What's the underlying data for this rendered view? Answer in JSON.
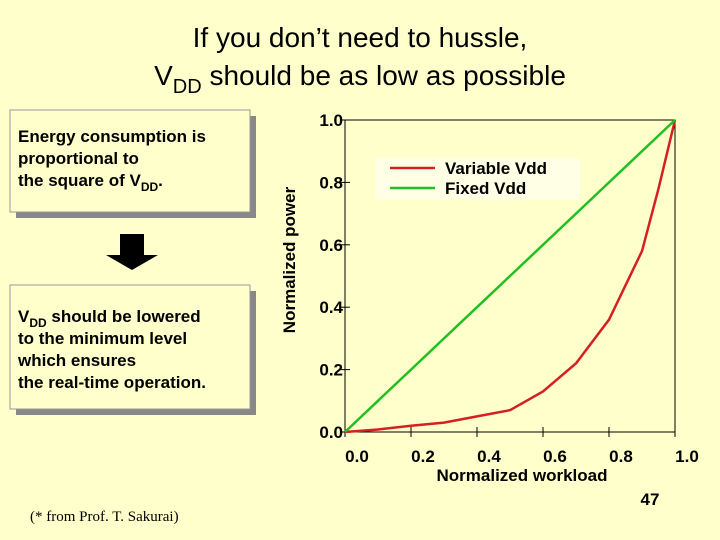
{
  "slide": {
    "title_line1": "If you don’t need to hussle,",
    "title_line2": {
      "main": "V",
      "sub": "DD",
      "rest": " should be as low as possible"
    },
    "box1": {
      "line1": "Energy consumption is",
      "line2": "proportional to",
      "line3_main": "the square of V",
      "line3_sub": "DD",
      "line3_end": "."
    },
    "box2": {
      "line1_main": "V",
      "line1_sub": "DD",
      "line1_rest": " should be lowered",
      "line2": "to the minimum level",
      "line3": "which ensures",
      "line4": "the real-time operation."
    },
    "footnote": "(* from Prof. T. Sakurai)",
    "page_number": "47"
  },
  "chart_data": {
    "type": "line",
    "x_label": "Normalized workload",
    "y_label": "Normalized power",
    "x": [
      0,
      0.1,
      0.2,
      0.3,
      0.4,
      0.5,
      0.6,
      0.7,
      0.8,
      0.9,
      0.95,
      1.0
    ],
    "series": [
      {
        "name": "Variable Vdd",
        "color": "#d42020",
        "values": [
          0,
          0.008,
          0.02,
          0.03,
          0.05,
          0.07,
          0.13,
          0.22,
          0.36,
          0.58,
          0.78,
          1.0
        ]
      },
      {
        "name": "Fixed Vdd",
        "color": "#20c020",
        "values": [
          0,
          0.1,
          0.2,
          0.3,
          0.4,
          0.5,
          0.6,
          0.7,
          0.8,
          0.9,
          0.95,
          1.0
        ]
      }
    ],
    "xlim": [
      0,
      1
    ],
    "ylim": [
      0,
      1
    ],
    "xticks": [
      {
        "value": 0,
        "label": "0.0"
      },
      {
        "value": 0.2,
        "label": "0.2"
      },
      {
        "value": 0.4,
        "label": "0.4"
      },
      {
        "value": 0.6,
        "label": "0.6"
      },
      {
        "value": 0.8,
        "label": "0.8"
      },
      {
        "value": 1,
        "label": "1.0"
      }
    ],
    "yticks": [
      {
        "value": 0,
        "label": "0.0"
      },
      {
        "value": 0.2,
        "label": "0.2"
      },
      {
        "value": 0.4,
        "label": "0.4"
      },
      {
        "value": 0.6,
        "label": "0.6"
      },
      {
        "value": 0.8,
        "label": "0.8"
      },
      {
        "value": 1,
        "label": "1.0"
      }
    ]
  }
}
